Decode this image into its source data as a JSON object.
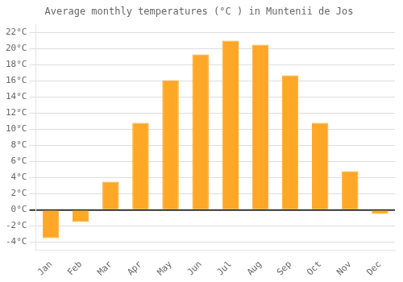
{
  "chart_data": {
    "type": "bar",
    "title": "Average monthly temperatures (°C ) in Muntenii de Jos",
    "categories": [
      "Jan",
      "Feb",
      "Mar",
      "Apr",
      "May",
      "Jun",
      "Jul",
      "Aug",
      "Sep",
      "Oct",
      "Nov",
      "Dec"
    ],
    "values": [
      -3.5,
      -1.5,
      3.5,
      10.8,
      16.1,
      19.3,
      21.0,
      20.5,
      16.7,
      10.8,
      4.8,
      -0.5
    ],
    "color": "#FFA726",
    "ylim": [
      -5,
      23
    ],
    "yticks": [
      {
        "value": -4,
        "label": "-4°C"
      },
      {
        "value": -2,
        "label": "-2°C"
      },
      {
        "value": 0,
        "label": "0°C"
      },
      {
        "value": 2,
        "label": "2°C"
      },
      {
        "value": 4,
        "label": "4°C"
      },
      {
        "value": 6,
        "label": "6°C"
      },
      {
        "value": 8,
        "label": "8°C"
      },
      {
        "value": 10,
        "label": "10°C"
      },
      {
        "value": 12,
        "label": "12°C"
      },
      {
        "value": 14,
        "label": "14°C"
      },
      {
        "value": 16,
        "label": "16°C"
      },
      {
        "value": 18,
        "label": "18°C"
      },
      {
        "value": 20,
        "label": "20°C"
      },
      {
        "value": 22,
        "label": "22°C"
      }
    ],
    "grid": true
  }
}
